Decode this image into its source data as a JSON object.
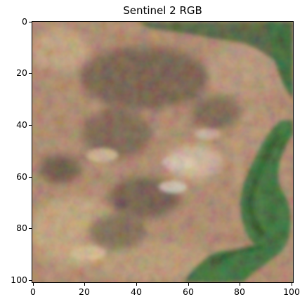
{
  "title": "Sentinel 2 RGB",
  "image": {
    "kind": "satellite-rgb-composite",
    "dominant_colors": [
      "#b98f72",
      "#5c4a3b",
      "#2f6b2f",
      "#e6c79d",
      "#0b4e16"
    ],
    "axis_max": 100
  },
  "x_ticks": [
    "0",
    "20",
    "40",
    "60",
    "80",
    "100"
  ],
  "y_ticks": [
    "0",
    "20",
    "40",
    "60",
    "80",
    "100"
  ]
}
